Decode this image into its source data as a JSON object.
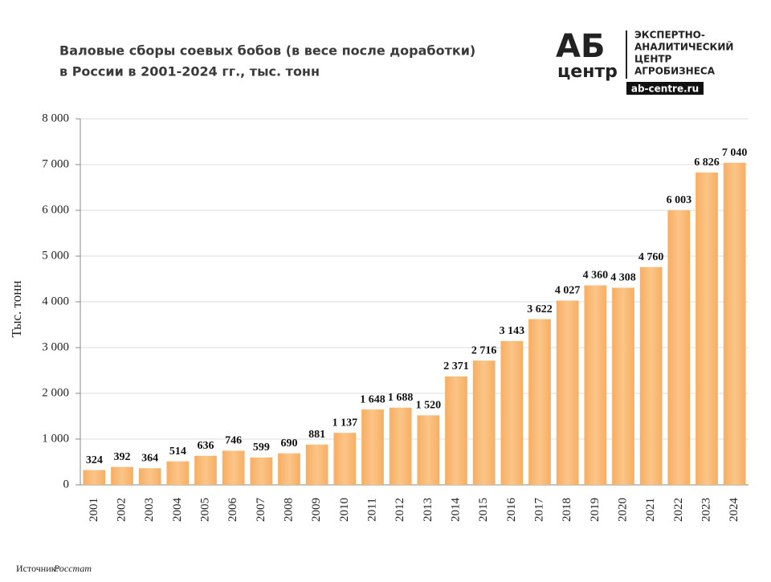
{
  "chart_data": {
    "type": "bar",
    "title": [
      "Валовые сборы соевых бобов (в весе после доработки)",
      "в России в 2001-2024 гг., тыс. тонн"
    ],
    "y_label": "Тыс. тонн",
    "categories": [
      "2001",
      "2002",
      "2003",
      "2004",
      "2005",
      "2006",
      "2007",
      "2008",
      "2009",
      "2010",
      "2011",
      "2012",
      "2013",
      "2014",
      "2015",
      "2016",
      "2017",
      "2018",
      "2019",
      "2020",
      "2021",
      "2022",
      "2023",
      "2024"
    ],
    "values": [
      324,
      392,
      364,
      514,
      636,
      746,
      599,
      690,
      881,
      1137,
      1648,
      1688,
      1520,
      2371,
      2716,
      3143,
      3622,
      4027,
      4360,
      4308,
      4760,
      6003,
      6826,
      7040
    ],
    "value_labels": [
      "324",
      "392",
      "364",
      "514",
      "636",
      "746",
      "599",
      "690",
      "881",
      "1 137",
      "1 648",
      "1 688",
      "1 520",
      "2 371",
      "2 716",
      "3 143",
      "3 622",
      "4 027",
      "4 360",
      "4 308",
      "4 760",
      "6 003",
      "6 826",
      "7 040"
    ],
    "color": "#f9b872",
    "ylim": [
      0,
      8000
    ],
    "yticks": [
      0,
      {
        "value": 1000,
        "label": "1 000"
      },
      {
        "value": 2000,
        "label": "2 000"
      },
      {
        "value": 3000,
        "label": "3 000"
      },
      {
        "value": 4000,
        "label": "4 000"
      },
      {
        "value": 5000,
        "label": "5 000"
      },
      {
        "value": 6000,
        "label": "6 000"
      },
      {
        "value": 7000,
        "label": "7 000"
      },
      {
        "value": 8000,
        "label": "8 000"
      }
    ],
    "grid": true
  },
  "logo": {
    "mark": "АБ",
    "mark_sub": "центр",
    "lines": [
      "ЭКСПЕРТНО-",
      "АНАЛИТИЧЕСКИЙ",
      "ЦЕНТР",
      "АГРОБИЗНЕСА"
    ],
    "site": "ab-centre.ru"
  },
  "source": {
    "label": "Источник:",
    "name": "Росстат"
  }
}
